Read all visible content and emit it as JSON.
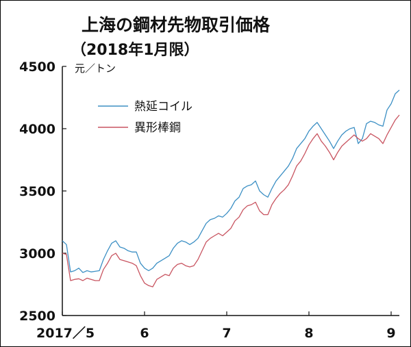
{
  "title": "上海の鋼材先物取引価格",
  "subtitle": "（2018年1月限）",
  "unit_label": "元／トン",
  "colors": {
    "series_0": "#3b8fc4",
    "series_1": "#c85460",
    "axis": "#111111",
    "text": "#111111",
    "background": "#ffffff"
  },
  "chart_data": {
    "type": "line",
    "title": "上海の鋼材先物取引価格",
    "subtitle": "（2018年1月限）",
    "ylabel": "元／トン",
    "xlabel": "",
    "ylim": [
      2500,
      4500
    ],
    "xlim": [
      0,
      4.1
    ],
    "x_ticks": [
      {
        "value": 0,
        "label": "2017／5"
      },
      {
        "value": 1,
        "label": "6"
      },
      {
        "value": 2,
        "label": "7"
      },
      {
        "value": 3,
        "label": "8"
      },
      {
        "value": 4,
        "label": "9"
      }
    ],
    "y_ticks": [
      2500,
      3000,
      3500,
      4000,
      4500
    ],
    "grid": false,
    "legend_position": "top-left",
    "x_note": "x values are months since the start of May 2017",
    "series": [
      {
        "name": "熱延コイル",
        "color": "#3b8fc4",
        "x": [
          0.0,
          0.05,
          0.1,
          0.15,
          0.2,
          0.25,
          0.3,
          0.35,
          0.4,
          0.45,
          0.5,
          0.55,
          0.6,
          0.65,
          0.7,
          0.75,
          0.8,
          0.85,
          0.9,
          0.95,
          1.0,
          1.05,
          1.1,
          1.15,
          1.2,
          1.25,
          1.3,
          1.35,
          1.4,
          1.45,
          1.5,
          1.55,
          1.6,
          1.65,
          1.7,
          1.75,
          1.8,
          1.85,
          1.9,
          1.95,
          2.0,
          2.05,
          2.1,
          2.15,
          2.2,
          2.25,
          2.3,
          2.35,
          2.4,
          2.45,
          2.5,
          2.55,
          2.6,
          2.65,
          2.7,
          2.75,
          2.8,
          2.85,
          2.9,
          2.95,
          3.0,
          3.05,
          3.1,
          3.15,
          3.2,
          3.25,
          3.3,
          3.35,
          3.4,
          3.45,
          3.5,
          3.55,
          3.6,
          3.65,
          3.7,
          3.75,
          3.8,
          3.85,
          3.9,
          3.95,
          4.0,
          4.05,
          4.1
        ],
        "y": [
          3100,
          3070,
          2850,
          2860,
          2880,
          2845,
          2860,
          2850,
          2855,
          2860,
          2950,
          3020,
          3080,
          3100,
          3050,
          3040,
          3020,
          3010,
          3010,
          2920,
          2880,
          2860,
          2880,
          2920,
          2940,
          2960,
          2980,
          3040,
          3080,
          3100,
          3090,
          3070,
          3090,
          3120,
          3180,
          3240,
          3270,
          3280,
          3300,
          3290,
          3320,
          3360,
          3420,
          3450,
          3520,
          3540,
          3550,
          3580,
          3500,
          3470,
          3450,
          3520,
          3580,
          3620,
          3660,
          3700,
          3760,
          3840,
          3880,
          3920,
          3980,
          4020,
          4050,
          4000,
          3950,
          3900,
          3840,
          3900,
          3950,
          3980,
          4000,
          4010,
          3880,
          3920,
          4040,
          4060,
          4050,
          4030,
          4020,
          4150,
          4200,
          4280,
          4310
        ]
      },
      {
        "name": "異形棒鋼",
        "color": "#c85460",
        "x": [
          0.0,
          0.05,
          0.1,
          0.15,
          0.2,
          0.25,
          0.3,
          0.35,
          0.4,
          0.45,
          0.5,
          0.55,
          0.6,
          0.65,
          0.7,
          0.75,
          0.8,
          0.85,
          0.9,
          0.95,
          1.0,
          1.05,
          1.1,
          1.15,
          1.2,
          1.25,
          1.3,
          1.35,
          1.4,
          1.45,
          1.5,
          1.55,
          1.6,
          1.65,
          1.7,
          1.75,
          1.8,
          1.85,
          1.9,
          1.95,
          2.0,
          2.05,
          2.1,
          2.15,
          2.2,
          2.25,
          2.3,
          2.35,
          2.4,
          2.45,
          2.5,
          2.55,
          2.6,
          2.65,
          2.7,
          2.75,
          2.8,
          2.85,
          2.9,
          2.95,
          3.0,
          3.05,
          3.1,
          3.15,
          3.2,
          3.25,
          3.3,
          3.35,
          3.4,
          3.45,
          3.5,
          3.55,
          3.6,
          3.65,
          3.7,
          3.75,
          3.8,
          3.85,
          3.9,
          3.95,
          4.0,
          4.05,
          4.1
        ],
        "y": [
          3000,
          2990,
          2780,
          2790,
          2795,
          2780,
          2800,
          2790,
          2780,
          2780,
          2870,
          2920,
          2980,
          3000,
          2950,
          2940,
          2930,
          2920,
          2900,
          2820,
          2760,
          2740,
          2730,
          2790,
          2810,
          2830,
          2820,
          2880,
          2910,
          2920,
          2900,
          2890,
          2900,
          2950,
          3020,
          3090,
          3120,
          3140,
          3160,
          3140,
          3170,
          3200,
          3260,
          3290,
          3350,
          3380,
          3390,
          3410,
          3340,
          3310,
          3310,
          3390,
          3440,
          3480,
          3510,
          3550,
          3620,
          3700,
          3740,
          3800,
          3870,
          3920,
          3960,
          3900,
          3860,
          3810,
          3750,
          3810,
          3860,
          3890,
          3920,
          3950,
          3920,
          3900,
          3920,
          3960,
          3940,
          3920,
          3880,
          3950,
          4010,
          4070,
          4110
        ]
      }
    ]
  }
}
